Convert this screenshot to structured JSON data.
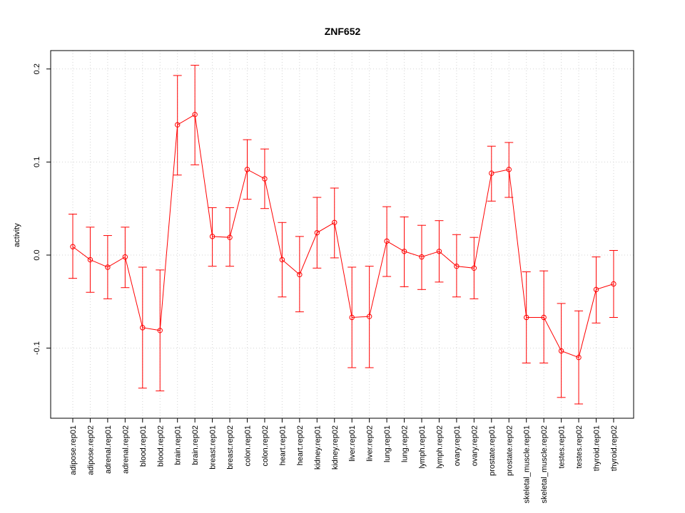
{
  "chart_data": {
    "type": "line",
    "title": "ZNF652",
    "xlabel": "",
    "ylabel": "activity",
    "ylim": [
      -0.175,
      0.22
    ],
    "yticks": [
      -0.1,
      0.0,
      0.1,
      0.2
    ],
    "ytick_labels": [
      "-0.1",
      "0.0",
      "0.1",
      "0.2"
    ],
    "grid": true,
    "categories": [
      "adipose.rep01",
      "adipose.rep02",
      "adrenal.rep01",
      "adrenal.rep02",
      "blood.rep01",
      "blood.rep02",
      "brain.rep01",
      "brain.rep02",
      "breast.rep01",
      "breast.rep02",
      "colon.rep01",
      "colon.rep02",
      "heart.rep01",
      "heart.rep02",
      "kidney.rep01",
      "kidney.rep02",
      "liver.rep01",
      "liver.rep02",
      "lung.rep01",
      "lung.rep02",
      "lymph.rep01",
      "lymph.rep02",
      "ovary.rep01",
      "ovary.rep02",
      "prostate.rep01",
      "prostate.rep02",
      "skeletal_muscle.rep01",
      "skeletal_muscle.rep02",
      "testes.rep01",
      "testes.rep02",
      "thyroid.rep01",
      "thyroid.rep02"
    ],
    "series": [
      {
        "name": "ZNF652",
        "color": "#ff0000",
        "values": [
          0.009,
          -0.005,
          -0.013,
          -0.002,
          -0.078,
          -0.081,
          0.14,
          0.151,
          0.02,
          0.019,
          0.092,
          0.082,
          -0.005,
          -0.021,
          0.024,
          0.035,
          -0.067,
          -0.066,
          0.015,
          0.004,
          -0.002,
          0.004,
          -0.012,
          -0.014,
          0.088,
          0.092,
          -0.067,
          -0.067,
          -0.103,
          -0.11,
          -0.037,
          -0.031
        ],
        "upper": [
          0.044,
          0.03,
          0.021,
          0.03,
          -0.013,
          -0.016,
          0.193,
          0.204,
          0.051,
          0.051,
          0.124,
          0.114,
          0.035,
          0.02,
          0.062,
          0.072,
          -0.013,
          -0.012,
          0.052,
          0.041,
          0.032,
          0.037,
          0.022,
          0.019,
          0.117,
          0.121,
          -0.018,
          -0.017,
          -0.052,
          -0.06,
          -0.002,
          0.005
        ],
        "lower": [
          -0.025,
          -0.04,
          -0.047,
          -0.035,
          -0.143,
          -0.146,
          0.086,
          0.097,
          -0.012,
          -0.012,
          0.06,
          0.05,
          -0.045,
          -0.061,
          -0.014,
          -0.003,
          -0.121,
          -0.121,
          -0.023,
          -0.034,
          -0.037,
          -0.029,
          -0.045,
          -0.047,
          0.058,
          0.062,
          -0.116,
          -0.116,
          -0.153,
          -0.16,
          -0.073,
          -0.067
        ]
      }
    ]
  }
}
